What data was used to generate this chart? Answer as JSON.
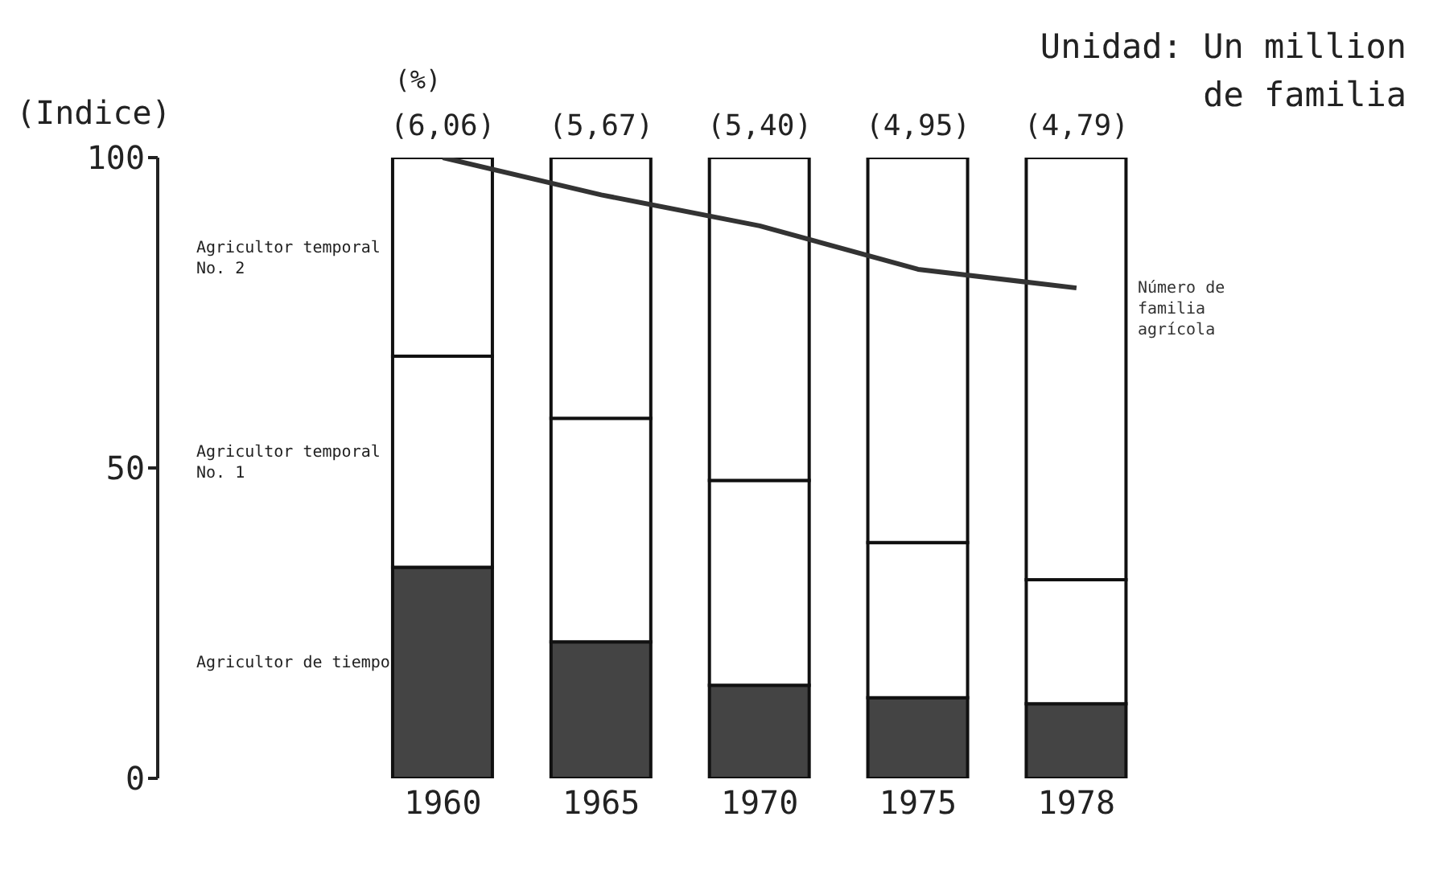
{
  "chart_data": {
    "type": "bar",
    "stacked": true,
    "categories": [
      "1960",
      "1965",
      "1970",
      "1975",
      "1978"
    ],
    "series": [
      {
        "name": "Agricultor de tiempo",
        "color": "#444444",
        "values": [
          34,
          22,
          15,
          13,
          12
        ]
      },
      {
        "name": "Agricultor temporal No. 1",
        "color": "#ffffff",
        "values": [
          34,
          36,
          33,
          25,
          20
        ]
      },
      {
        "name": "Agricultor temporal No. 2",
        "color": "#ffffff",
        "values": [
          32,
          42,
          52,
          62,
          68
        ]
      },
      {
        "name": "Número de familia agrícola",
        "type": "line",
        "color": "#333333",
        "values": [
          100,
          94,
          89,
          82,
          79
        ]
      }
    ],
    "ylabel": "(Indice)",
    "ylim": [
      0,
      100
    ],
    "yticks": [
      0,
      50,
      100
    ],
    "annotations": [
      "Unidad: Un million de familia",
      "(%)",
      {
        "text": "(6,06)",
        "x": "1960",
        "y": 100
      },
      {
        "text": "(5,67)",
        "x": "1965",
        "y": 100
      },
      {
        "text": "(5,40)",
        "x": "1970",
        "y": 100
      },
      {
        "text": "(4,95)",
        "x": "1975",
        "y": 100
      },
      {
        "text": "(4,79)",
        "x": "1978",
        "y": 100
      }
    ],
    "marker": "none",
    "legend": false,
    "grid": false
  }
}
